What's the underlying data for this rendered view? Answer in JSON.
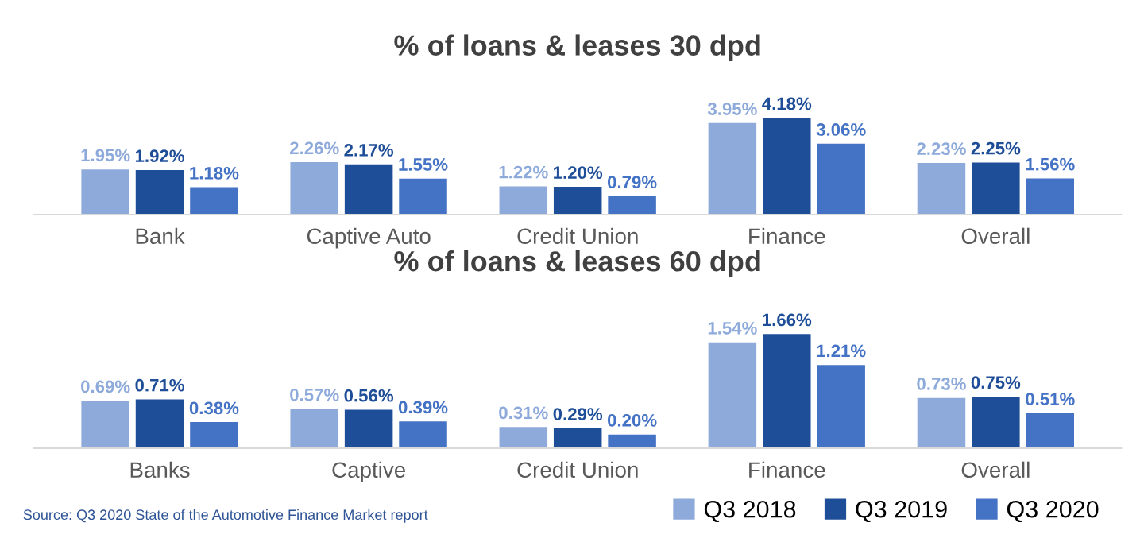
{
  "chart_data": [
    {
      "type": "bar",
      "title": "% of loans & leases 30 dpd",
      "categories": [
        "Bank",
        "Captive Auto",
        "Credit Union",
        "Finance",
        "Overall"
      ],
      "series": [
        {
          "color": "#8eaadb",
          "values": [
            1.95,
            2.26,
            1.22,
            3.95,
            2.23
          ],
          "value_labels": [
            "1.95%",
            "2.26%",
            "1.22%",
            "3.95%",
            "2.23%"
          ]
        },
        {
          "color": "#1f4e99",
          "values": [
            1.92,
            2.17,
            1.2,
            4.18,
            2.25
          ],
          "value_labels": [
            "1.92%",
            "2.17%",
            "1.20%",
            "4.18%",
            "2.25%"
          ]
        },
        {
          "color": "#4472c4",
          "values": [
            1.18,
            1.55,
            0.79,
            3.06,
            1.56
          ],
          "value_labels": [
            "1.18%",
            "1.55%",
            "0.79%",
            "3.06%",
            "1.56%"
          ]
        }
      ]
    },
    {
      "type": "bar",
      "title": "% of loans & leases 60 dpd",
      "categories": [
        "Banks",
        "Captive",
        "Credit Union",
        "Finance",
        "Overall"
      ],
      "legend": "bottom right",
      "annotations": [
        "Source: Q3 2020 State of the Automotive Finance Market report"
      ],
      "series": [
        {
          "name": "Q3 2018",
          "color": "#8eaadb",
          "values": [
            0.69,
            0.57,
            0.31,
            1.54,
            0.73
          ],
          "value_labels": [
            "0.69%",
            "0.57%",
            "0.31%",
            "1.54%",
            "0.73%"
          ]
        },
        {
          "name": "Q3 2019",
          "color": "#1f4e99",
          "values": [
            0.71,
            0.56,
            0.29,
            1.66,
            0.75
          ],
          "value_labels": [
            "0.71%",
            "0.56%",
            "0.29%",
            "1.66%",
            "0.75%"
          ]
        },
        {
          "name": "Q3 2020",
          "color": "#4472c4",
          "values": [
            0.38,
            0.39,
            0.2,
            1.21,
            0.51
          ],
          "value_labels": [
            "0.38%",
            "0.39%",
            "0.20%",
            "1.21%",
            "0.51%"
          ]
        }
      ]
    }
  ]
}
